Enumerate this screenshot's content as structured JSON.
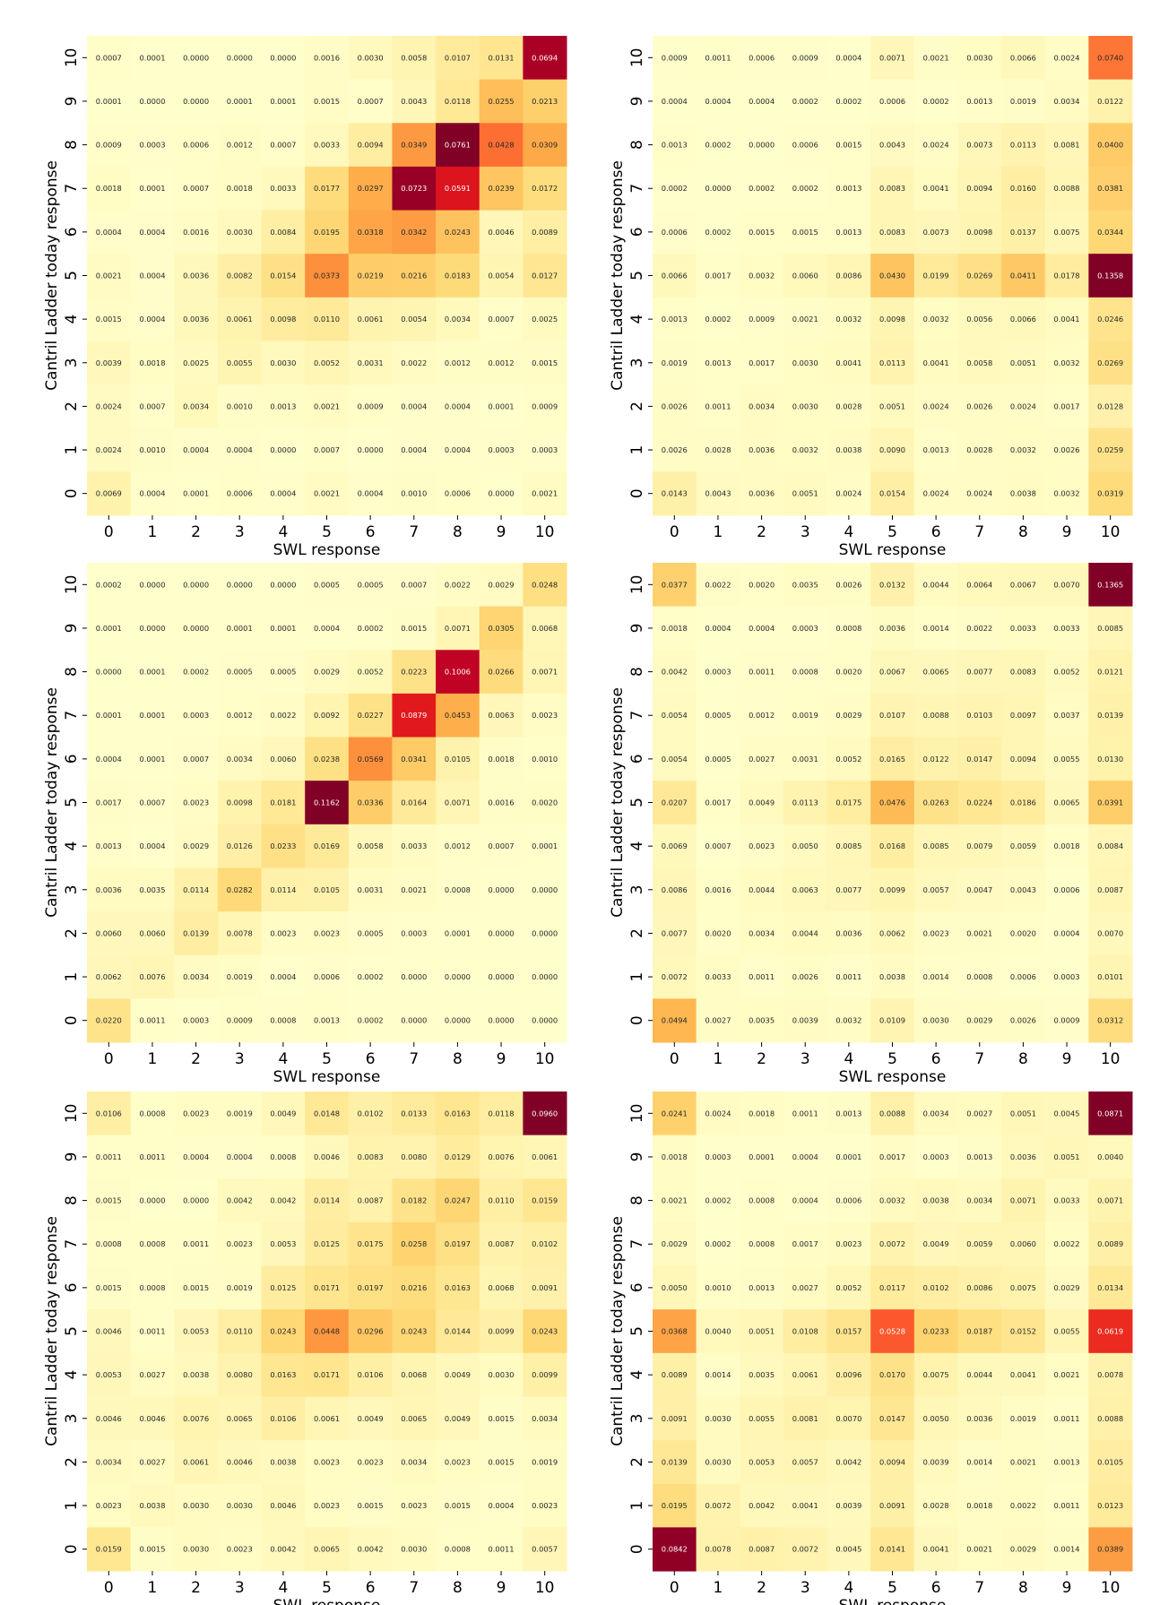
{
  "chart_data": [
    {
      "type": "heatmap",
      "xlabel": "SWL response",
      "ylabel": "Cantril Ladder today response",
      "x_categories": [
        "0",
        "1",
        "2",
        "3",
        "4",
        "5",
        "6",
        "7",
        "8",
        "9",
        "10"
      ],
      "y_categories": [
        "10",
        "9",
        "8",
        "7",
        "6",
        "5",
        "4",
        "3",
        "2",
        "1",
        "0"
      ],
      "colormap": "YlOrRd",
      "values": [
        [
          "0.0007",
          "0.0001",
          "0.0000",
          "0.0000",
          "0.0000",
          "0.0016",
          "0.0030",
          "0.0058",
          "0.0107",
          "0.0131",
          "0.0694"
        ],
        [
          "0.0001",
          "0.0000",
          "0.0000",
          "0.0001",
          "0.0001",
          "0.0015",
          "0.0007",
          "0.0043",
          "0.0118",
          "0.0255",
          "0.0213"
        ],
        [
          "0.0009",
          "0.0003",
          "0.0006",
          "0.0012",
          "0.0007",
          "0.0033",
          "0.0094",
          "0.0349",
          "0.0761",
          "0.0428",
          "0.0309"
        ],
        [
          "0.0018",
          "0.0001",
          "0.0007",
          "0.0018",
          "0.0033",
          "0.0177",
          "0.0297",
          "0.0723",
          "0.0591",
          "0.0239",
          "0.0172"
        ],
        [
          "0.0004",
          "0.0004",
          "0.0016",
          "0.0030",
          "0.0084",
          "0.0195",
          "0.0318",
          "0.0342",
          "0.0243",
          "0.0046",
          "0.0089"
        ],
        [
          "0.0021",
          "0.0004",
          "0.0036",
          "0.0082",
          "0.0154",
          "0.0373",
          "0.0219",
          "0.0216",
          "0.0183",
          "0.0054",
          "0.0127"
        ],
        [
          "0.0015",
          "0.0004",
          "0.0036",
          "0.0061",
          "0.0098",
          "0.0110",
          "0.0061",
          "0.0054",
          "0.0034",
          "0.0007",
          "0.0025"
        ],
        [
          "0.0039",
          "0.0018",
          "0.0025",
          "0.0055",
          "0.0030",
          "0.0052",
          "0.0031",
          "0.0022",
          "0.0012",
          "0.0012",
          "0.0015"
        ],
        [
          "0.0024",
          "0.0007",
          "0.0034",
          "0.0010",
          "0.0013",
          "0.0021",
          "0.0009",
          "0.0004",
          "0.0004",
          "0.0001",
          "0.0009"
        ],
        [
          "0.0024",
          "0.0010",
          "0.0004",
          "0.0004",
          "0.0000",
          "0.0007",
          "0.0000",
          "0.0004",
          "0.0004",
          "0.0003",
          "0.0003"
        ],
        [
          "0.0069",
          "0.0004",
          "0.0001",
          "0.0006",
          "0.0004",
          "0.0021",
          "0.0004",
          "0.0010",
          "0.0006",
          "0.0000",
          "0.0021"
        ]
      ]
    },
    {
      "type": "heatmap",
      "xlabel": "SWL response",
      "ylabel": "Cantril Ladder today response",
      "x_categories": [
        "0",
        "1",
        "2",
        "3",
        "4",
        "5",
        "6",
        "7",
        "8",
        "9",
        "10"
      ],
      "y_categories": [
        "10",
        "9",
        "8",
        "7",
        "6",
        "5",
        "4",
        "3",
        "2",
        "1",
        "0"
      ],
      "colormap": "YlOrRd",
      "values": [
        [
          "0.0009",
          "0.0011",
          "0.0006",
          "0.0009",
          "0.0004",
          "0.0071",
          "0.0021",
          "0.0030",
          "0.0066",
          "0.0024",
          "0.0740"
        ],
        [
          "0.0004",
          "0.0004",
          "0.0004",
          "0.0002",
          "0.0002",
          "0.0006",
          "0.0002",
          "0.0013",
          "0.0019",
          "0.0034",
          "0.0122"
        ],
        [
          "0.0013",
          "0.0002",
          "0.0000",
          "0.0006",
          "0.0015",
          "0.0043",
          "0.0024",
          "0.0073",
          "0.0113",
          "0.0081",
          "0.0400"
        ],
        [
          "0.0002",
          "0.0000",
          "0.0002",
          "0.0002",
          "0.0013",
          "0.0083",
          "0.0041",
          "0.0094",
          "0.0160",
          "0.0088",
          "0.0381"
        ],
        [
          "0.0006",
          "0.0002",
          "0.0015",
          "0.0015",
          "0.0013",
          "0.0083",
          "0.0073",
          "0.0098",
          "0.0137",
          "0.0075",
          "0.0344"
        ],
        [
          "0.0066",
          "0.0017",
          "0.0032",
          "0.0060",
          "0.0086",
          "0.0430",
          "0.0199",
          "0.0269",
          "0.0411",
          "0.0178",
          "0.1358"
        ],
        [
          "0.0013",
          "0.0002",
          "0.0009",
          "0.0021",
          "0.0032",
          "0.0098",
          "0.0032",
          "0.0056",
          "0.0066",
          "0.0041",
          "0.0246"
        ],
        [
          "0.0019",
          "0.0013",
          "0.0017",
          "0.0030",
          "0.0041",
          "0.0113",
          "0.0041",
          "0.0058",
          "0.0051",
          "0.0032",
          "0.0269"
        ],
        [
          "0.0026",
          "0.0011",
          "0.0034",
          "0.0030",
          "0.0028",
          "0.0051",
          "0.0024",
          "0.0026",
          "0.0024",
          "0.0017",
          "0.0128"
        ],
        [
          "0.0026",
          "0.0028",
          "0.0036",
          "0.0032",
          "0.0038",
          "0.0090",
          "0.0013",
          "0.0028",
          "0.0032",
          "0.0026",
          "0.0259"
        ],
        [
          "0.0143",
          "0.0043",
          "0.0036",
          "0.0051",
          "0.0024",
          "0.0154",
          "0.0024",
          "0.0024",
          "0.0038",
          "0.0032",
          "0.0319"
        ]
      ]
    },
    {
      "type": "heatmap",
      "xlabel": "SWL response",
      "ylabel": "Cantril Ladder today response",
      "x_categories": [
        "0",
        "1",
        "2",
        "3",
        "4",
        "5",
        "6",
        "7",
        "8",
        "9",
        "10"
      ],
      "y_categories": [
        "10",
        "9",
        "8",
        "7",
        "6",
        "5",
        "4",
        "3",
        "2",
        "1",
        "0"
      ],
      "colormap": "YlOrRd",
      "values": [
        [
          "0.0002",
          "0.0000",
          "0.0000",
          "0.0000",
          "0.0000",
          "0.0005",
          "0.0005",
          "0.0007",
          "0.0022",
          "0.0029",
          "0.0248"
        ],
        [
          "0.0001",
          "0.0000",
          "0.0000",
          "0.0001",
          "0.0001",
          "0.0004",
          "0.0002",
          "0.0015",
          "0.0071",
          "0.0305",
          "0.0068"
        ],
        [
          "0.0000",
          "0.0001",
          "0.0002",
          "0.0005",
          "0.0005",
          "0.0029",
          "0.0052",
          "0.0223",
          "0.1006",
          "0.0266",
          "0.0071"
        ],
        [
          "0.0001",
          "0.0001",
          "0.0003",
          "0.0012",
          "0.0022",
          "0.0092",
          "0.0227",
          "0.0879",
          "0.0453",
          "0.0063",
          "0.0023"
        ],
        [
          "0.0004",
          "0.0001",
          "0.0007",
          "0.0034",
          "0.0060",
          "0.0238",
          "0.0569",
          "0.0341",
          "0.0105",
          "0.0018",
          "0.0010"
        ],
        [
          "0.0017",
          "0.0007",
          "0.0023",
          "0.0098",
          "0.0181",
          "0.1162",
          "0.0336",
          "0.0164",
          "0.0071",
          "0.0016",
          "0.0020"
        ],
        [
          "0.0013",
          "0.0004",
          "0.0029",
          "0.0126",
          "0.0233",
          "0.0169",
          "0.0058",
          "0.0033",
          "0.0012",
          "0.0007",
          "0.0001"
        ],
        [
          "0.0036",
          "0.0035",
          "0.0114",
          "0.0282",
          "0.0114",
          "0.0105",
          "0.0031",
          "0.0021",
          "0.0008",
          "0.0000",
          "0.0000"
        ],
        [
          "0.0060",
          "0.0060",
          "0.0139",
          "0.0078",
          "0.0023",
          "0.0023",
          "0.0005",
          "0.0003",
          "0.0001",
          "0.0000",
          "0.0000"
        ],
        [
          "0.0062",
          "0.0076",
          "0.0034",
          "0.0019",
          "0.0004",
          "0.0006",
          "0.0002",
          "0.0000",
          "0.0000",
          "0.0000",
          "0.0000"
        ],
        [
          "0.0220",
          "0.0011",
          "0.0003",
          "0.0009",
          "0.0008",
          "0.0013",
          "0.0002",
          "0.0000",
          "0.0000",
          "0.0000",
          "0.0000"
        ]
      ]
    },
    {
      "type": "heatmap",
      "xlabel": "SWL response",
      "ylabel": "Cantril Ladder today response",
      "x_categories": [
        "0",
        "1",
        "2",
        "3",
        "4",
        "5",
        "6",
        "7",
        "8",
        "9",
        "10"
      ],
      "y_categories": [
        "10",
        "9",
        "8",
        "7",
        "6",
        "5",
        "4",
        "3",
        "2",
        "1",
        "0"
      ],
      "colormap": "YlOrRd",
      "values": [
        [
          "0.0377",
          "0.0022",
          "0.0020",
          "0.0035",
          "0.0026",
          "0.0132",
          "0.0044",
          "0.0064",
          "0.0067",
          "0.0070",
          "0.1365"
        ],
        [
          "0.0018",
          "0.0004",
          "0.0004",
          "0.0003",
          "0.0008",
          "0.0036",
          "0.0014",
          "0.0022",
          "0.0033",
          "0.0033",
          "0.0085"
        ],
        [
          "0.0042",
          "0.0003",
          "0.0011",
          "0.0008",
          "0.0020",
          "0.0067",
          "0.0065",
          "0.0077",
          "0.0083",
          "0.0052",
          "0.0121"
        ],
        [
          "0.0054",
          "0.0005",
          "0.0012",
          "0.0019",
          "0.0029",
          "0.0107",
          "0.0088",
          "0.0103",
          "0.0097",
          "0.0037",
          "0.0139"
        ],
        [
          "0.0054",
          "0.0005",
          "0.0027",
          "0.0031",
          "0.0052",
          "0.0165",
          "0.0122",
          "0.0147",
          "0.0094",
          "0.0055",
          "0.0130"
        ],
        [
          "0.0207",
          "0.0017",
          "0.0049",
          "0.0113",
          "0.0175",
          "0.0476",
          "0.0263",
          "0.0224",
          "0.0186",
          "0.0065",
          "0.0391"
        ],
        [
          "0.0069",
          "0.0007",
          "0.0023",
          "0.0050",
          "0.0085",
          "0.0168",
          "0.0085",
          "0.0079",
          "0.0059",
          "0.0018",
          "0.0084"
        ],
        [
          "0.0086",
          "0.0016",
          "0.0044",
          "0.0063",
          "0.0077",
          "0.0099",
          "0.0057",
          "0.0047",
          "0.0043",
          "0.0006",
          "0.0087"
        ],
        [
          "0.0077",
          "0.0020",
          "0.0034",
          "0.0044",
          "0.0036",
          "0.0062",
          "0.0023",
          "0.0021",
          "0.0020",
          "0.0004",
          "0.0070"
        ],
        [
          "0.0072",
          "0.0033",
          "0.0011",
          "0.0026",
          "0.0011",
          "0.0038",
          "0.0014",
          "0.0008",
          "0.0006",
          "0.0003",
          "0.0101"
        ],
        [
          "0.0494",
          "0.0027",
          "0.0035",
          "0.0039",
          "0.0032",
          "0.0109",
          "0.0030",
          "0.0029",
          "0.0026",
          "0.0009",
          "0.0312"
        ]
      ]
    },
    {
      "type": "heatmap",
      "xlabel": "SWL response",
      "ylabel": "Cantril Ladder today response",
      "x_categories": [
        "0",
        "1",
        "2",
        "3",
        "4",
        "5",
        "6",
        "7",
        "8",
        "9",
        "10"
      ],
      "y_categories": [
        "10",
        "9",
        "8",
        "7",
        "6",
        "5",
        "4",
        "3",
        "2",
        "1",
        "0"
      ],
      "colormap": "YlOrRd",
      "values": [
        [
          "0.0106",
          "0.0008",
          "0.0023",
          "0.0019",
          "0.0049",
          "0.0148",
          "0.0102",
          "0.0133",
          "0.0163",
          "0.0118",
          "0.0960"
        ],
        [
          "0.0011",
          "0.0011",
          "0.0004",
          "0.0004",
          "0.0008",
          "0.0046",
          "0.0083",
          "0.0080",
          "0.0129",
          "0.0076",
          "0.0061"
        ],
        [
          "0.0015",
          "0.0000",
          "0.0000",
          "0.0042",
          "0.0042",
          "0.0114",
          "0.0087",
          "0.0182",
          "0.0247",
          "0.0110",
          "0.0159"
        ],
        [
          "0.0008",
          "0.0008",
          "0.0011",
          "0.0023",
          "0.0053",
          "0.0125",
          "0.0175",
          "0.0258",
          "0.0197",
          "0.0087",
          "0.0102"
        ],
        [
          "0.0015",
          "0.0008",
          "0.0015",
          "0.0019",
          "0.0125",
          "0.0171",
          "0.0197",
          "0.0216",
          "0.0163",
          "0.0068",
          "0.0091"
        ],
        [
          "0.0046",
          "0.0011",
          "0.0053",
          "0.0110",
          "0.0243",
          "0.0448",
          "0.0296",
          "0.0243",
          "0.0144",
          "0.0099",
          "0.0243"
        ],
        [
          "0.0053",
          "0.0027",
          "0.0038",
          "0.0080",
          "0.0163",
          "0.0171",
          "0.0106",
          "0.0068",
          "0.0049",
          "0.0030",
          "0.0099"
        ],
        [
          "0.0046",
          "0.0046",
          "0.0076",
          "0.0065",
          "0.0106",
          "0.0061",
          "0.0049",
          "0.0065",
          "0.0049",
          "0.0015",
          "0.0034"
        ],
        [
          "0.0034",
          "0.0027",
          "0.0061",
          "0.0046",
          "0.0038",
          "0.0023",
          "0.0023",
          "0.0034",
          "0.0023",
          "0.0015",
          "0.0019"
        ],
        [
          "0.0023",
          "0.0038",
          "0.0030",
          "0.0030",
          "0.0046",
          "0.0023",
          "0.0015",
          "0.0023",
          "0.0015",
          "0.0004",
          "0.0023"
        ],
        [
          "0.0159",
          "0.0015",
          "0.0030",
          "0.0023",
          "0.0042",
          "0.0065",
          "0.0042",
          "0.0030",
          "0.0008",
          "0.0011",
          "0.0057"
        ]
      ]
    },
    {
      "type": "heatmap",
      "xlabel": "SWL response",
      "ylabel": "Cantril Ladder today response",
      "x_categories": [
        "0",
        "1",
        "2",
        "3",
        "4",
        "5",
        "6",
        "7",
        "8",
        "9",
        "10"
      ],
      "y_categories": [
        "10",
        "9",
        "8",
        "7",
        "6",
        "5",
        "4",
        "3",
        "2",
        "1",
        "0"
      ],
      "colormap": "YlOrRd",
      "values": [
        [
          "0.0241",
          "0.0024",
          "0.0018",
          "0.0011",
          "0.0013",
          "0.0088",
          "0.0034",
          "0.0027",
          "0.0051",
          "0.0045",
          "0.0871"
        ],
        [
          "0.0018",
          "0.0003",
          "0.0001",
          "0.0004",
          "0.0001",
          "0.0017",
          "0.0003",
          "0.0013",
          "0.0036",
          "0.0051",
          "0.0040"
        ],
        [
          "0.0021",
          "0.0002",
          "0.0008",
          "0.0004",
          "0.0006",
          "0.0032",
          "0.0038",
          "0.0034",
          "0.0071",
          "0.0033",
          "0.0071"
        ],
        [
          "0.0029",
          "0.0002",
          "0.0008",
          "0.0017",
          "0.0023",
          "0.0072",
          "0.0049",
          "0.0059",
          "0.0060",
          "0.0022",
          "0.0089"
        ],
        [
          "0.0050",
          "0.0010",
          "0.0013",
          "0.0027",
          "0.0052",
          "0.0117",
          "0.0102",
          "0.0086",
          "0.0075",
          "0.0029",
          "0.0134"
        ],
        [
          "0.0368",
          "0.0040",
          "0.0051",
          "0.0108",
          "0.0157",
          "0.0528",
          "0.0233",
          "0.0187",
          "0.0152",
          "0.0055",
          "0.0619"
        ],
        [
          "0.0089",
          "0.0014",
          "0.0035",
          "0.0061",
          "0.0096",
          "0.0170",
          "0.0075",
          "0.0044",
          "0.0041",
          "0.0021",
          "0.0078"
        ],
        [
          "0.0091",
          "0.0030",
          "0.0055",
          "0.0081",
          "0.0070",
          "0.0147",
          "0.0050",
          "0.0036",
          "0.0019",
          "0.0011",
          "0.0088"
        ],
        [
          "0.0139",
          "0.0030",
          "0.0053",
          "0.0057",
          "0.0042",
          "0.0094",
          "0.0039",
          "0.0014",
          "0.0021",
          "0.0013",
          "0.0105"
        ],
        [
          "0.0195",
          "0.0072",
          "0.0042",
          "0.0041",
          "0.0039",
          "0.0091",
          "0.0028",
          "0.0018",
          "0.0022",
          "0.0011",
          "0.0123"
        ],
        [
          "0.0842",
          "0.0078",
          "0.0087",
          "0.0072",
          "0.0045",
          "0.0141",
          "0.0041",
          "0.0021",
          "0.0029",
          "0.0014",
          "0.0389"
        ]
      ]
    }
  ]
}
